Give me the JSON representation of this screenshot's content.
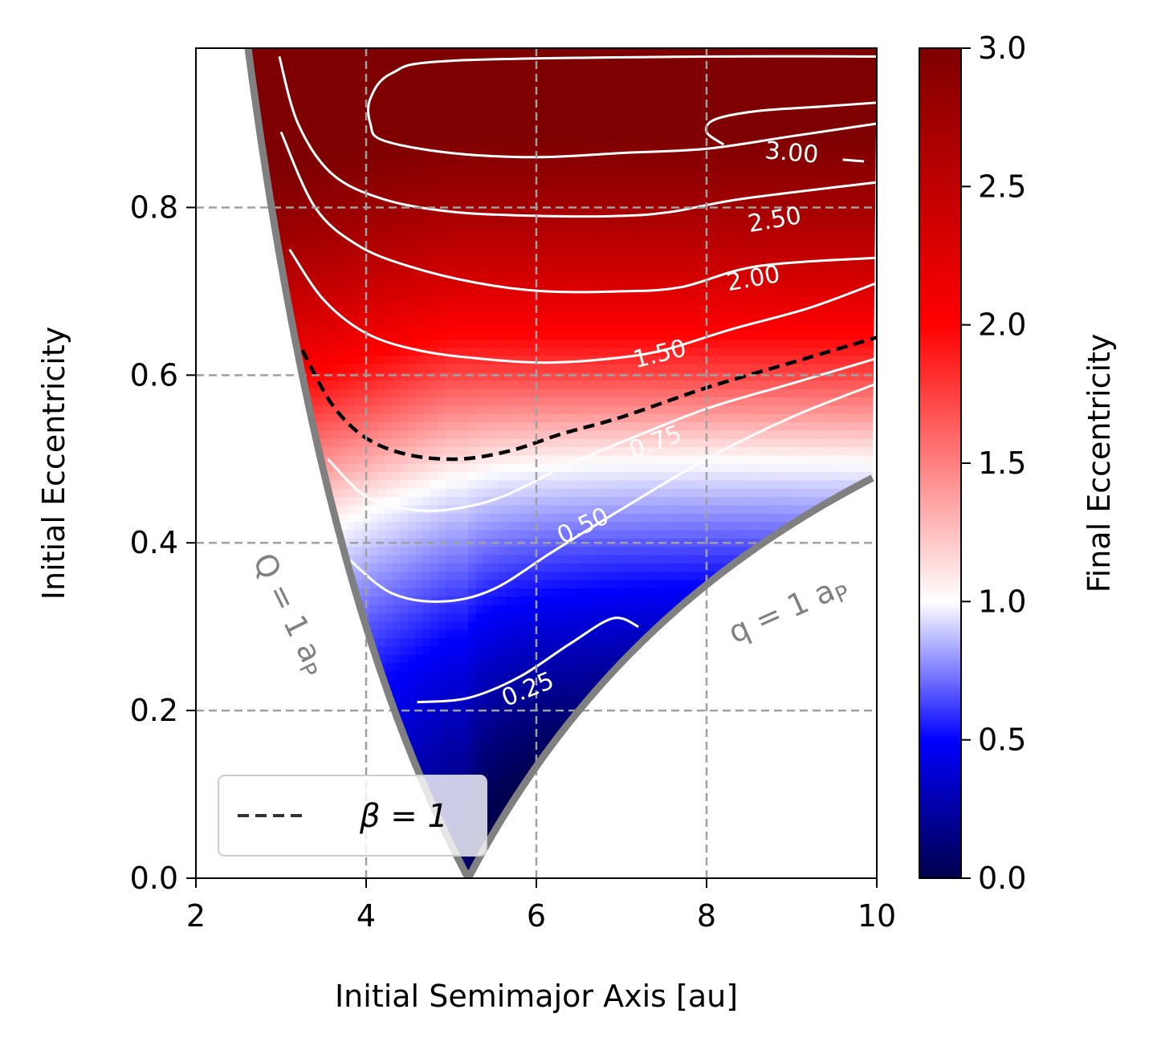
{
  "chart_data": {
    "type": "heatmap",
    "title": "",
    "xlabel": "Initial Semimajor Axis [au]",
    "ylabel": "Initial Eccentricity",
    "xlim": [
      2,
      10
    ],
    "ylim": [
      0,
      0.99
    ],
    "xticks": [
      2,
      4,
      6,
      8,
      10
    ],
    "xtick_labels": [
      "2",
      "4",
      "6",
      "8",
      "10"
    ],
    "yticks": [
      0.0,
      0.2,
      0.4,
      0.6,
      0.8
    ],
    "ytick_labels": [
      "0.0",
      "0.2",
      "0.4",
      "0.6",
      "0.8"
    ],
    "grid": true,
    "planet_semimajor_axis_au": 5.2,
    "colorbar": {
      "label": "Final Eccentricity",
      "range": [
        0.0,
        3.0
      ],
      "ticks": [
        0.0,
        0.5,
        1.0,
        1.5,
        2.0,
        2.5,
        3.0
      ],
      "tick_labels": [
        "0.0",
        "0.5",
        "1.0",
        "1.5",
        "2.0",
        "2.5",
        "3.0"
      ],
      "colormap": "seismic",
      "colormap_stops": [
        "#00004c",
        "#0000ff",
        "#ffffff",
        "#ff0000",
        "#7f0000"
      ]
    },
    "contours": [
      {
        "level": 0.25,
        "label": "0.25",
        "points": [
          [
            4.6,
            0.21
          ],
          [
            5.2,
            0.215
          ],
          [
            5.8,
            0.24
          ],
          [
            6.4,
            0.28
          ],
          [
            6.9,
            0.31
          ],
          [
            7.2,
            0.3
          ]
        ]
      },
      {
        "level": 0.5,
        "label": "0.50",
        "points": [
          [
            3.8,
            0.38
          ],
          [
            4.3,
            0.34
          ],
          [
            4.9,
            0.33
          ],
          [
            5.5,
            0.345
          ],
          [
            6.2,
            0.39
          ],
          [
            7.0,
            0.44
          ],
          [
            8.0,
            0.5
          ],
          [
            9.0,
            0.55
          ],
          [
            10.0,
            0.59
          ]
        ]
      },
      {
        "level": 0.75,
        "label": "0.75",
        "points": [
          [
            3.55,
            0.5
          ],
          [
            4.0,
            0.455
          ],
          [
            4.5,
            0.44
          ],
          [
            5.0,
            0.44
          ],
          [
            5.6,
            0.455
          ],
          [
            6.3,
            0.49
          ],
          [
            7.0,
            0.52
          ],
          [
            8.0,
            0.56
          ],
          [
            9.0,
            0.59
          ],
          [
            10.0,
            0.62
          ]
        ]
      },
      {
        "level": 1.5,
        "label": "1.50",
        "points": [
          [
            3.1,
            0.75
          ],
          [
            3.5,
            0.69
          ],
          [
            4.0,
            0.65
          ],
          [
            4.6,
            0.63
          ],
          [
            5.3,
            0.62
          ],
          [
            6.1,
            0.615
          ],
          [
            6.9,
            0.62
          ],
          [
            7.5,
            0.63
          ],
          [
            8.3,
            0.655
          ],
          [
            9.2,
            0.68
          ],
          [
            10.0,
            0.71
          ]
        ]
      },
      {
        "level": 2.0,
        "label": "2.00",
        "points": [
          [
            3.0,
            0.89
          ],
          [
            3.4,
            0.8
          ],
          [
            3.9,
            0.755
          ],
          [
            4.5,
            0.73
          ],
          [
            5.3,
            0.71
          ],
          [
            6.1,
            0.7
          ],
          [
            7.0,
            0.7
          ],
          [
            7.7,
            0.705
          ],
          [
            8.6,
            0.73
          ],
          [
            10.0,
            0.74
          ]
        ]
      },
      {
        "level": 2.5,
        "label": "2.50",
        "points": [
          [
            2.98,
            0.98
          ],
          [
            3.2,
            0.9
          ],
          [
            3.6,
            0.84
          ],
          [
            4.2,
            0.81
          ],
          [
            5.0,
            0.795
          ],
          [
            6.0,
            0.79
          ],
          [
            7.0,
            0.79
          ],
          [
            7.6,
            0.795
          ],
          [
            8.4,
            0.81
          ],
          [
            10.0,
            0.83
          ]
        ]
      },
      {
        "level": 2.75,
        "label": "",
        "points": [
          [
            10.0,
            0.98
          ],
          [
            8.0,
            0.98
          ],
          [
            5.0,
            0.975
          ],
          [
            4.3,
            0.96
          ],
          [
            4.05,
            0.93
          ],
          [
            4.05,
            0.9
          ],
          [
            4.2,
            0.88
          ],
          [
            5.0,
            0.865
          ],
          [
            6.0,
            0.86
          ],
          [
            7.0,
            0.865
          ],
          [
            8.0,
            0.87
          ],
          [
            9.0,
            0.885
          ],
          [
            10.0,
            0.9
          ]
        ]
      },
      {
        "level": 3.0,
        "label": "3.00",
        "points": [
          [
            9.85,
            0.855
          ],
          [
            9.6,
            0.857
          ]
        ]
      },
      {
        "level": 3.0,
        "label": "",
        "points": [
          [
            8.2,
            0.875
          ],
          [
            8.0,
            0.89
          ],
          [
            8.1,
            0.905
          ],
          [
            8.6,
            0.915
          ],
          [
            9.3,
            0.92
          ],
          [
            10.0,
            0.925
          ]
        ]
      }
    ],
    "contour_labels": [
      {
        "text": "3.00",
        "x": 9.0,
        "y": 0.865,
        "angle": 5
      },
      {
        "text": "2.50",
        "x": 8.8,
        "y": 0.785,
        "angle": -10
      },
      {
        "text": "2.00",
        "x": 8.55,
        "y": 0.715,
        "angle": -10
      },
      {
        "text": "1.50",
        "x": 7.45,
        "y": 0.625,
        "angle": -14
      },
      {
        "text": "0.75",
        "x": 7.4,
        "y": 0.52,
        "angle": -20
      },
      {
        "text": "0.50",
        "x": 6.55,
        "y": 0.42,
        "angle": -25
      },
      {
        "text": "0.25",
        "x": 5.9,
        "y": 0.225,
        "angle": -22
      }
    ],
    "series": [
      {
        "name": "β = 1",
        "style": "dashed",
        "color": "#000000",
        "points": [
          [
            3.25,
            0.63
          ],
          [
            3.6,
            0.565
          ],
          [
            4.0,
            0.525
          ],
          [
            4.5,
            0.505
          ],
          [
            5.1,
            0.5
          ],
          [
            5.7,
            0.51
          ],
          [
            6.3,
            0.53
          ],
          [
            7.0,
            0.55
          ],
          [
            8.0,
            0.585
          ],
          [
            9.0,
            0.615
          ],
          [
            10.0,
            0.645
          ]
        ]
      }
    ],
    "boundaries": [
      {
        "label": "Q = 1 aP",
        "color": "#808080"
      },
      {
        "label": "q = 1 aP",
        "color": "#808080"
      }
    ],
    "legend": {
      "entries": [
        {
          "label": "β = 1",
          "style": "dashed"
        }
      ],
      "placement": "lower-left"
    },
    "annotations": [
      {
        "text": "Q = 1 a",
        "subscript": "P",
        "x": 3.0,
        "y": 0.31,
        "angle": 64
      },
      {
        "text": "q = 1 a",
        "subscript": "P",
        "x": 9.0,
        "y": 0.31,
        "angle": -24
      }
    ]
  }
}
